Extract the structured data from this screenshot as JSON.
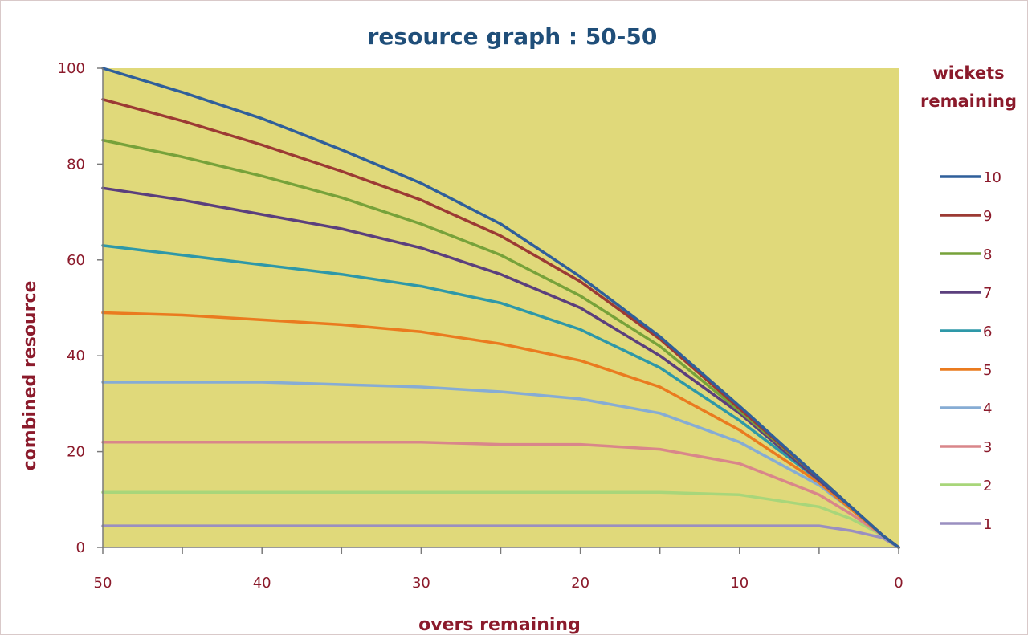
{
  "chart_data": {
    "type": "line",
    "title": "resource graph : 50-50",
    "xlabel": "overs remaining",
    "ylabel": "combined resource",
    "legend_title": "wickets remaining",
    "legend_title_lines": [
      "wickets",
      "remaining"
    ],
    "legend_position": "right",
    "xlim": [
      50,
      0
    ],
    "ylim": [
      0,
      100
    ],
    "x_ticks": [
      50,
      40,
      30,
      20,
      10,
      0
    ],
    "y_ticks": [
      0,
      20,
      40,
      60,
      80,
      100
    ],
    "grid": false,
    "x": [
      50,
      45,
      40,
      35,
      30,
      25,
      20,
      15,
      10,
      5,
      3,
      1,
      0
    ],
    "series": [
      {
        "name": "10",
        "color": "#2f5f9a",
        "values": [
          100,
          95,
          89.5,
          83,
          76,
          67.5,
          56.5,
          44,
          29.5,
          14.5,
          8.5,
          2.5,
          0
        ]
      },
      {
        "name": "9",
        "color": "#9c3a34",
        "values": [
          93.5,
          89,
          84,
          78.5,
          72.5,
          65,
          55.5,
          43.5,
          29,
          14.5,
          8.5,
          2.5,
          0
        ]
      },
      {
        "name": "8",
        "color": "#77a23a",
        "values": [
          85,
          81.5,
          77.5,
          73,
          67.5,
          61,
          52.5,
          42,
          28.5,
          14.5,
          8.5,
          2.5,
          0
        ]
      },
      {
        "name": "7",
        "color": "#5b3f7d",
        "values": [
          75,
          72.5,
          69.5,
          66.5,
          62.5,
          57,
          50,
          40,
          28,
          14,
          8.5,
          2.5,
          0
        ]
      },
      {
        "name": "6",
        "color": "#2e98a8",
        "values": [
          63,
          61,
          59,
          57,
          54.5,
          51,
          45.5,
          37.5,
          26.5,
          14,
          8.5,
          2.5,
          0
        ]
      },
      {
        "name": "5",
        "color": "#ea7b1f",
        "values": [
          49,
          48.5,
          47.5,
          46.5,
          45,
          42.5,
          39,
          33.5,
          24.5,
          13.5,
          8,
          2.5,
          0
        ]
      },
      {
        "name": "4",
        "color": "#86acd4",
        "values": [
          34.5,
          34.5,
          34.5,
          34,
          33.5,
          32.5,
          31,
          28,
          22,
          13,
          8,
          2.5,
          0
        ]
      },
      {
        "name": "3",
        "color": "#d9868a",
        "values": [
          22,
          22,
          22,
          22,
          22,
          21.5,
          21.5,
          20.5,
          17.5,
          11,
          7,
          2.5,
          0
        ]
      },
      {
        "name": "2",
        "color": "#a8d67a",
        "values": [
          11.5,
          11.5,
          11.5,
          11.5,
          11.5,
          11.5,
          11.5,
          11.5,
          11,
          8.5,
          6,
          2.5,
          0
        ]
      },
      {
        "name": "1",
        "color": "#9a8fc0",
        "values": [
          4.5,
          4.5,
          4.5,
          4.5,
          4.5,
          4.5,
          4.5,
          4.5,
          4.5,
          4.5,
          3.5,
          2,
          0
        ]
      }
    ],
    "plot_background": "#e0d97a"
  }
}
